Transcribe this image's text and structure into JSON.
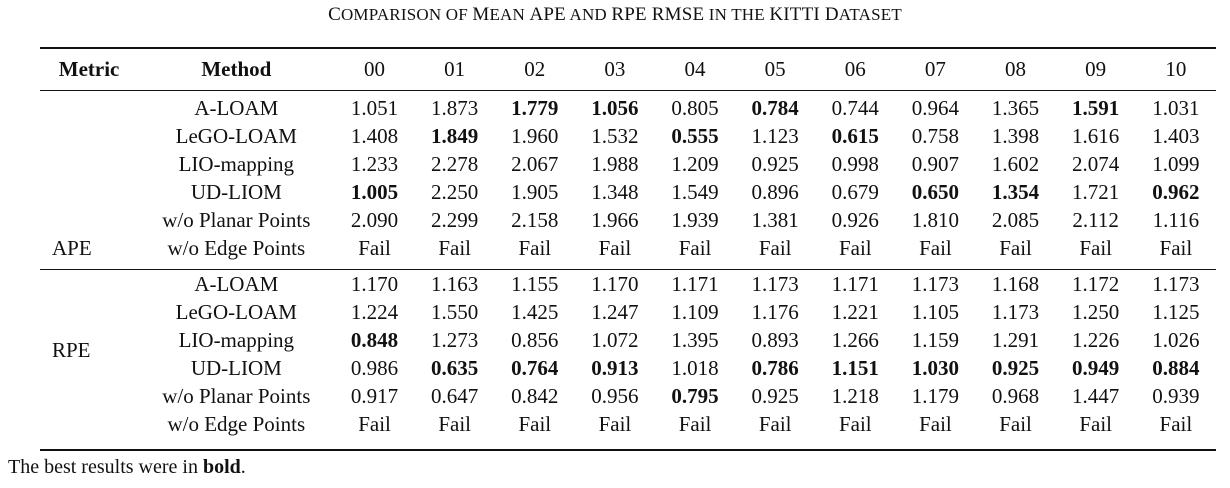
{
  "caption": {
    "parts": [
      "C",
      "OMPARISON OF ",
      "M",
      "EAN ",
      "APE",
      " AND ",
      "RPE RMSE",
      " IN THE ",
      "KITTI D",
      "ATASET"
    ]
  },
  "table": {
    "headers": [
      "Metric",
      "Method",
      "00",
      "01",
      "02",
      "03",
      "04",
      "05",
      "06",
      "07",
      "08",
      "09",
      "10"
    ],
    "groups": [
      {
        "metric": "APE",
        "rows": [
          {
            "method": "A-LOAM",
            "values": [
              "1.051",
              "1.873",
              "1.779",
              "1.056",
              "0.805",
              "0.784",
              "0.744",
              "0.964",
              "1.365",
              "1.591",
              "1.031"
            ],
            "bold": [
              false,
              false,
              true,
              true,
              false,
              true,
              false,
              false,
              false,
              true,
              false
            ]
          },
          {
            "method": "LeGO-LOAM",
            "values": [
              "1.408",
              "1.849",
              "1.960",
              "1.532",
              "0.555",
              "1.123",
              "0.615",
              "0.758",
              "1.398",
              "1.616",
              "1.403"
            ],
            "bold": [
              false,
              true,
              false,
              false,
              true,
              false,
              true,
              false,
              false,
              false,
              false
            ]
          },
          {
            "method": "LIO-mapping",
            "values": [
              "1.233",
              "2.278",
              "2.067",
              "1.988",
              "1.209",
              "0.925",
              "0.998",
              "0.907",
              "1.602",
              "2.074",
              "1.099"
            ],
            "bold": [
              false,
              false,
              false,
              false,
              false,
              false,
              false,
              false,
              false,
              false,
              false
            ]
          },
          {
            "method": "UD-LIOM",
            "values": [
              "1.005",
              "2.250",
              "1.905",
              "1.348",
              "1.549",
              "0.896",
              "0.679",
              "0.650",
              "1.354",
              "1.721",
              "0.962"
            ],
            "bold": [
              true,
              false,
              false,
              false,
              false,
              false,
              false,
              true,
              true,
              false,
              true
            ]
          },
          {
            "method": "w/o Planar Points",
            "values": [
              "2.090",
              "2.299",
              "2.158",
              "1.966",
              "1.939",
              "1.381",
              "0.926",
              "1.810",
              "2.085",
              "2.112",
              "1.116"
            ],
            "bold": [
              false,
              false,
              false,
              false,
              false,
              false,
              false,
              false,
              false,
              false,
              false
            ]
          },
          {
            "method": "w/o Edge Points",
            "values": [
              "Fail",
              "Fail",
              "Fail",
              "Fail",
              "Fail",
              "Fail",
              "Fail",
              "Fail",
              "Fail",
              "Fail",
              "Fail"
            ],
            "bold": [
              false,
              false,
              false,
              false,
              false,
              false,
              false,
              false,
              false,
              false,
              false
            ]
          }
        ]
      },
      {
        "metric": "RPE",
        "rows": [
          {
            "method": "A-LOAM",
            "values": [
              "1.170",
              "1.163",
              "1.155",
              "1.170",
              "1.171",
              "1.173",
              "1.171",
              "1.173",
              "1.168",
              "1.172",
              "1.173"
            ],
            "bold": [
              false,
              false,
              false,
              false,
              false,
              false,
              false,
              false,
              false,
              false,
              false
            ]
          },
          {
            "method": "LeGO-LOAM",
            "values": [
              "1.224",
              "1.550",
              "1.425",
              "1.247",
              "1.109",
              "1.176",
              "1.221",
              "1.105",
              "1.173",
              "1.250",
              "1.125"
            ],
            "bold": [
              false,
              false,
              false,
              false,
              false,
              false,
              false,
              false,
              false,
              false,
              false
            ]
          },
          {
            "method": "LIO-mapping",
            "values": [
              "0.848",
              "1.273",
              "0.856",
              "1.072",
              "1.395",
              "0.893",
              "1.266",
              "1.159",
              "1.291",
              "1.226",
              "1.026"
            ],
            "bold": [
              true,
              false,
              false,
              false,
              false,
              false,
              false,
              false,
              false,
              false,
              false
            ]
          },
          {
            "method": "UD-LIOM",
            "values": [
              "0.986",
              "0.635",
              "0.764",
              "0.913",
              "1.018",
              "0.786",
              "1.151",
              "1.030",
              "0.925",
              "0.949",
              "0.884"
            ],
            "bold": [
              false,
              true,
              true,
              true,
              false,
              true,
              true,
              true,
              true,
              true,
              true
            ]
          },
          {
            "method": "w/o Planar Points",
            "values": [
              "0.917",
              "0.647",
              "0.842",
              "0.956",
              "0.795",
              "0.925",
              "1.218",
              "1.179",
              "0.968",
              "1.447",
              "0.939"
            ],
            "bold": [
              false,
              false,
              false,
              false,
              true,
              false,
              false,
              false,
              false,
              false,
              false
            ]
          },
          {
            "method": "w/o Edge Points",
            "values": [
              "Fail",
              "Fail",
              "Fail",
              "Fail",
              "Fail",
              "Fail",
              "Fail",
              "Fail",
              "Fail",
              "Fail",
              "Fail"
            ],
            "bold": [
              false,
              false,
              false,
              false,
              false,
              false,
              false,
              false,
              false,
              false,
              false
            ]
          }
        ]
      }
    ]
  },
  "note": {
    "prefix": "The best results were in ",
    "bold": "bold",
    "suffix": "."
  }
}
